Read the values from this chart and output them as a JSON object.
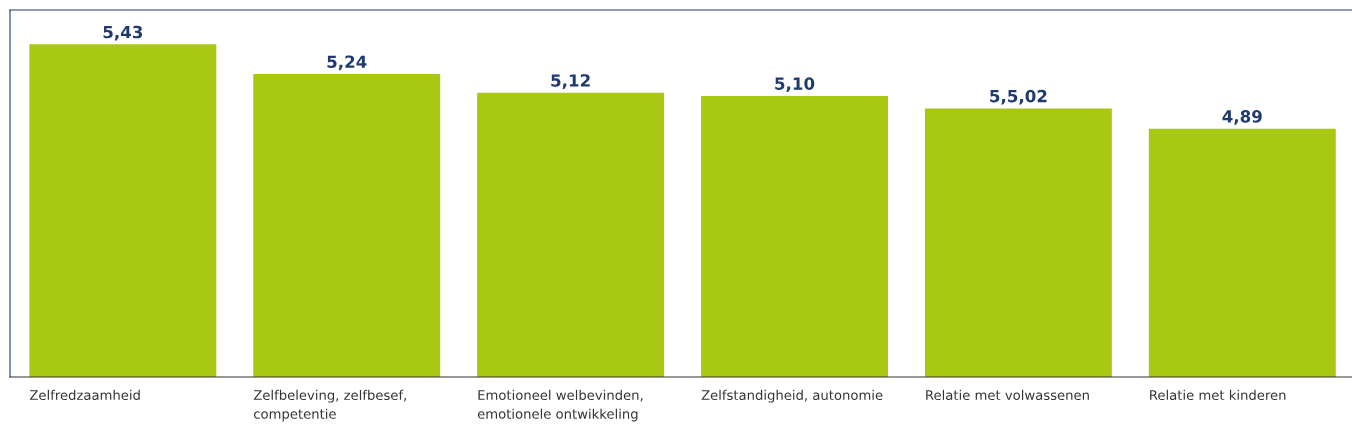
{
  "chart_data": {
    "type": "bar",
    "categories": [
      "Zelfredzaamheid",
      "Zelfbeleving, zelfbesef,\ncompetentie",
      "Emotioneel welbevinden,\nemotionele ontwikkeling",
      "Zelfstandigheid, autonomie",
      "Relatie met volwassenen",
      "Relatie met kinderen"
    ],
    "values": [
      5.43,
      5.24,
      5.12,
      5.1,
      5.02,
      4.89
    ],
    "value_labels": [
      "5,43",
      "5,24",
      "5,12",
      "5,10",
      "5,5,02",
      "4,89"
    ],
    "color": "#a8c813",
    "ylim": [
      3.3,
      5.65
    ],
    "tick_labels": "x"
  }
}
